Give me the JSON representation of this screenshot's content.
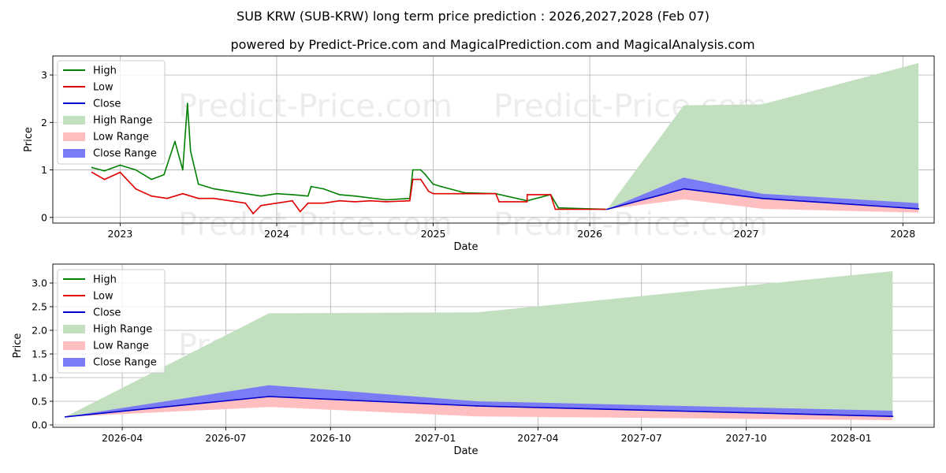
{
  "title": "SUB KRW (SUB-KRW) long term price prediction : 2026,2027,2028 (Feb 07)",
  "subtitle": "powered by Predict-Price.com and MagicalPrediction.com and MagicalAnalysis.com",
  "watermark": "Predict-Price.com",
  "colors": {
    "high": "#008000",
    "low": "#e00000",
    "close": "#0000cc",
    "high_range": "#c2dfc0",
    "low_range": "#ffbfc0",
    "close_range": "#7b7bf5",
    "grid": "#b0b0b0"
  },
  "chart_data": [
    {
      "type": "line",
      "xlabel": "Date",
      "ylabel": "Price",
      "xlim": [
        2022.57,
        2028.2
      ],
      "ylim": [
        -0.12,
        3.4
      ],
      "xticks": [
        {
          "v": 2023.0,
          "label": "2023"
        },
        {
          "v": 2024.0,
          "label": "2024"
        },
        {
          "v": 2025.0,
          "label": "2025"
        },
        {
          "v": 2026.0,
          "label": "2026"
        },
        {
          "v": 2027.0,
          "label": "2027"
        },
        {
          "v": 2028.0,
          "label": "2028"
        }
      ],
      "yticks": [
        {
          "v": 0,
          "label": "0"
        },
        {
          "v": 1,
          "label": "1"
        },
        {
          "v": 2,
          "label": "2"
        },
        {
          "v": 3,
          "label": "3"
        }
      ],
      "legend": [
        "High",
        "Low",
        "Close",
        "High Range",
        "Low Range",
        "Close Range"
      ],
      "legend_position": "upper-left",
      "series": [
        {
          "name": "High",
          "x": [
            2022.82,
            2022.9,
            2023.0,
            2023.1,
            2023.2,
            2023.28,
            2023.35,
            2023.4,
            2023.43,
            2023.45,
            2023.5,
            2023.6,
            2023.7,
            2023.8,
            2023.9,
            2024.0,
            2024.1,
            2024.2,
            2024.22,
            2024.3,
            2024.4,
            2024.5,
            2024.7,
            2024.85,
            2024.87,
            2024.92,
            2024.95,
            2025.0,
            2025.05,
            2025.2,
            2025.4,
            2025.6,
            2025.75,
            2025.8,
            2026.0,
            2026.1
          ],
          "y": [
            1.05,
            0.98,
            1.1,
            1.0,
            0.8,
            0.9,
            1.6,
            1.0,
            2.4,
            1.4,
            0.7,
            0.6,
            0.55,
            0.5,
            0.45,
            0.5,
            0.48,
            0.45,
            0.65,
            0.6,
            0.48,
            0.45,
            0.37,
            0.4,
            1.0,
            1.0,
            0.9,
            0.7,
            0.65,
            0.52,
            0.5,
            0.35,
            0.48,
            0.2,
            0.18,
            0.17
          ]
        },
        {
          "name": "Low",
          "x": [
            2022.82,
            2022.9,
            2023.0,
            2023.1,
            2023.2,
            2023.3,
            2023.4,
            2023.5,
            2023.6,
            2023.7,
            2023.8,
            2023.85,
            2023.9,
            2024.0,
            2024.1,
            2024.15,
            2024.2,
            2024.3,
            2024.4,
            2024.5,
            2024.6,
            2024.7,
            2024.85,
            2024.87,
            2024.92,
            2024.97,
            2025.0,
            2025.2,
            2025.4,
            2025.42,
            2025.6,
            2025.6,
            2025.75,
            2025.78,
            2026.0,
            2026.1
          ],
          "y": [
            0.95,
            0.8,
            0.95,
            0.6,
            0.45,
            0.4,
            0.5,
            0.4,
            0.4,
            0.35,
            0.3,
            0.08,
            0.25,
            0.3,
            0.35,
            0.12,
            0.3,
            0.3,
            0.35,
            0.33,
            0.35,
            0.33,
            0.35,
            0.8,
            0.8,
            0.55,
            0.5,
            0.5,
            0.5,
            0.33,
            0.33,
            0.48,
            0.48,
            0.17,
            0.17,
            0.17
          ]
        },
        {
          "name": "Close",
          "x": [
            2026.11,
            2026.6,
            2027.1,
            2028.1
          ],
          "y": [
            0.17,
            0.6,
            0.4,
            0.18
          ]
        }
      ],
      "ranges": [
        {
          "name": "High Range",
          "x": [
            2026.11,
            2026.6,
            2027.1,
            2028.1
          ],
          "lo": [
            0.17,
            0.6,
            0.4,
            0.18
          ],
          "hi": [
            0.17,
            2.36,
            2.38,
            3.25
          ]
        },
        {
          "name": "Close Range",
          "x": [
            2026.11,
            2026.6,
            2027.1,
            2028.1
          ],
          "lo": [
            0.17,
            0.6,
            0.4,
            0.18
          ],
          "hi": [
            0.17,
            0.84,
            0.5,
            0.3
          ]
        },
        {
          "name": "Low Range",
          "x": [
            2026.11,
            2026.6,
            2027.1,
            2028.1
          ],
          "lo": [
            0.17,
            0.38,
            0.18,
            0.1
          ],
          "hi": [
            0.17,
            0.6,
            0.4,
            0.18
          ]
        }
      ]
    },
    {
      "type": "line",
      "xlabel": "Date",
      "ylabel": "Price",
      "xlim": [
        2026.08,
        2028.2
      ],
      "ylim": [
        -0.05,
        3.4
      ],
      "xticks": [
        {
          "v": 2026.247,
          "label": "2026-04"
        },
        {
          "v": 2026.496,
          "label": "2026-07"
        },
        {
          "v": 2026.748,
          "label": "2026-10"
        },
        {
          "v": 2027.0,
          "label": "2027-01"
        },
        {
          "v": 2027.247,
          "label": "2027-04"
        },
        {
          "v": 2027.496,
          "label": "2027-07"
        },
        {
          "v": 2027.748,
          "label": "2027-10"
        },
        {
          "v": 2028.0,
          "label": "2028-01"
        }
      ],
      "yticks": [
        {
          "v": 0.0,
          "label": "0.0"
        },
        {
          "v": 0.5,
          "label": "0.5"
        },
        {
          "v": 1.0,
          "label": "1.0"
        },
        {
          "v": 1.5,
          "label": "1.5"
        },
        {
          "v": 2.0,
          "label": "2.0"
        },
        {
          "v": 2.5,
          "label": "2.5"
        },
        {
          "v": 3.0,
          "label": "3.0"
        }
      ],
      "legend": [
        "High",
        "Low",
        "Close",
        "High Range",
        "Low Range",
        "Close Range"
      ],
      "legend_position": "upper-left",
      "series": [
        {
          "name": "Close",
          "x": [
            2026.11,
            2026.6,
            2027.1,
            2028.1
          ],
          "y": [
            0.17,
            0.6,
            0.4,
            0.18
          ]
        }
      ],
      "ranges": [
        {
          "name": "High Range",
          "x": [
            2026.11,
            2026.6,
            2027.1,
            2028.1
          ],
          "lo": [
            0.17,
            0.6,
            0.4,
            0.18
          ],
          "hi": [
            0.17,
            2.36,
            2.38,
            3.25
          ]
        },
        {
          "name": "Close Range",
          "x": [
            2026.11,
            2026.6,
            2027.1,
            2028.1
          ],
          "lo": [
            0.17,
            0.6,
            0.4,
            0.18
          ],
          "hi": [
            0.17,
            0.84,
            0.5,
            0.3
          ]
        },
        {
          "name": "Low Range",
          "x": [
            2026.11,
            2026.6,
            2027.1,
            2028.1
          ],
          "lo": [
            0.17,
            0.38,
            0.18,
            0.1
          ],
          "hi": [
            0.17,
            0.6,
            0.4,
            0.18
          ]
        }
      ]
    }
  ]
}
